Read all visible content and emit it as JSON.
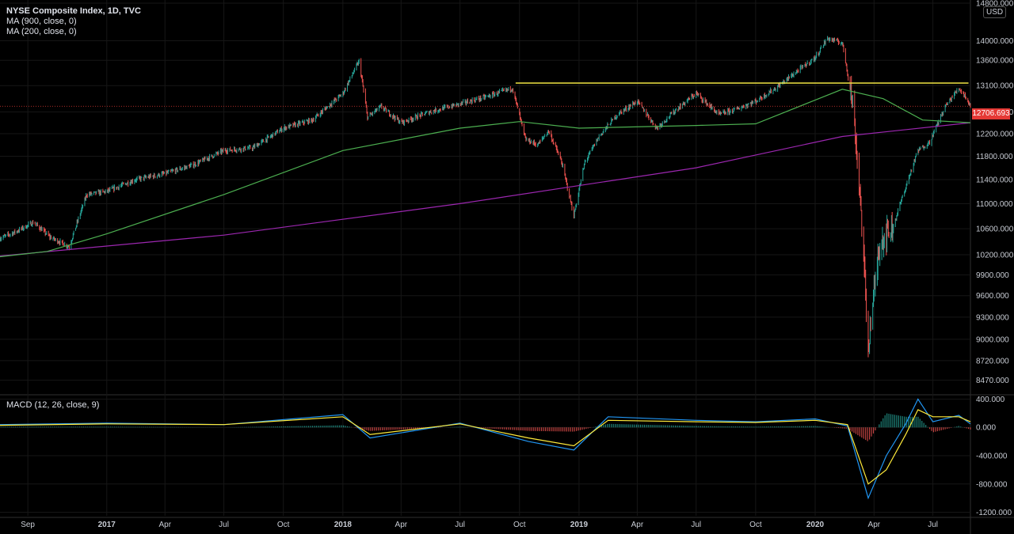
{
  "legend": {
    "title": "NYSE Composite Index, 1D, TVC",
    "ma900": "MA (900, close, 0)",
    "ma200": "MA (200, close, 0)",
    "macd": "MACD (12, 26, close, 9)"
  },
  "currency_badge": "USD",
  "last_price_label": "12706.693",
  "colors": {
    "background": "#000000",
    "candle_up": "#26a69a",
    "candle_down": "#ef5350",
    "ma900": "#9c27b0",
    "ma200": "#4caf50",
    "resistance": "#f0e442",
    "macd_line": "#2196f3",
    "signal_line": "#ffeb3b",
    "last_price": "#e53935"
  },
  "chart_data": [
    {
      "type": "line",
      "title": "NYSE Composite Index, 1D, TVC",
      "y_scale": "log",
      "ylim": [
        8300,
        14800
      ],
      "xlim": [
        "2016-07-20",
        "2020-08-28"
      ],
      "y_ticks": [
        "14800.000",
        "14000.000",
        "13600.000",
        "13100.000",
        "12600.000",
        "12200.000",
        "11800.000",
        "11400.000",
        "11000.000",
        "10600.000",
        "10200.000",
        "9900.000",
        "9600.000",
        "9300.000",
        "9000.000",
        "8720.000",
        "8470.000"
      ],
      "x_ticks": [
        {
          "label": "Sep",
          "date": "2016-09-01",
          "bold": false
        },
        {
          "label": "2017",
          "date": "2017-01-01",
          "bold": true
        },
        {
          "label": "Apr",
          "date": "2017-04-01",
          "bold": false
        },
        {
          "label": "Jul",
          "date": "2017-07-01",
          "bold": false
        },
        {
          "label": "Oct",
          "date": "2017-10-01",
          "bold": false
        },
        {
          "label": "2018",
          "date": "2018-01-01",
          "bold": true
        },
        {
          "label": "Apr",
          "date": "2018-04-01",
          "bold": false
        },
        {
          "label": "Jul",
          "date": "2018-07-01",
          "bold": false
        },
        {
          "label": "Oct",
          "date": "2018-10-01",
          "bold": false
        },
        {
          "label": "2019",
          "date": "2019-01-01",
          "bold": true
        },
        {
          "label": "Apr",
          "date": "2019-04-01",
          "bold": false
        },
        {
          "label": "Jul",
          "date": "2019-07-01",
          "bold": false
        },
        {
          "label": "Oct",
          "date": "2019-10-01",
          "bold": false
        },
        {
          "label": "2020",
          "date": "2020-01-01",
          "bold": true
        },
        {
          "label": "Apr",
          "date": "2020-04-01",
          "bold": false
        },
        {
          "label": "Jul",
          "date": "2020-07-01",
          "bold": false
        }
      ],
      "close_series": {
        "x": [
          "2016-07-20",
          "2016-08-15",
          "2016-09-10",
          "2016-10-05",
          "2016-11-04",
          "2016-12-01",
          "2017-01-01",
          "2017-02-15",
          "2017-04-01",
          "2017-05-15",
          "2017-07-01",
          "2017-08-15",
          "2017-10-01",
          "2017-11-15",
          "2018-01-01",
          "2018-01-26",
          "2018-02-08",
          "2018-03-01",
          "2018-04-01",
          "2018-05-15",
          "2018-07-01",
          "2018-08-15",
          "2018-09-20",
          "2018-10-10",
          "2018-10-29",
          "2018-11-15",
          "2018-12-05",
          "2018-12-24",
          "2019-01-10",
          "2019-02-01",
          "2019-03-01",
          "2019-04-01",
          "2019-05-01",
          "2019-06-01",
          "2019-07-01",
          "2019-08-05",
          "2019-09-01",
          "2019-10-01",
          "2019-11-01",
          "2019-12-01",
          "2020-01-01",
          "2020-01-20",
          "2020-02-12",
          "2020-02-28",
          "2020-03-10",
          "2020-03-23",
          "2020-04-10",
          "2020-05-01",
          "2020-06-08",
          "2020-06-26",
          "2020-07-20",
          "2020-08-10",
          "2020-08-20",
          "2020-08-28"
        ],
        "values": [
          10450,
          10560,
          10700,
          10470,
          10320,
          11150,
          11200,
          11400,
          11500,
          11650,
          11900,
          11950,
          12300,
          12450,
          12950,
          13580,
          12500,
          12700,
          12400,
          12600,
          12750,
          12900,
          13050,
          12100,
          12000,
          12250,
          11700,
          10800,
          11700,
          12150,
          12550,
          12800,
          12300,
          12650,
          12950,
          12550,
          12650,
          12800,
          13050,
          13350,
          13650,
          14050,
          13950,
          12750,
          11200,
          8900,
          10400,
          10650,
          11900,
          12050,
          12700,
          13050,
          12900,
          12706.693
        ]
      },
      "resistance_level": 13150,
      "ma900": {
        "x": [
          "2016-07-20",
          "2017-07-01",
          "2018-07-01",
          "2019-07-01",
          "2020-02-12",
          "2020-08-28"
        ],
        "values": [
          10180,
          10500,
          11000,
          11600,
          12150,
          12400
        ]
      },
      "ma200": {
        "x": [
          "2016-07-20",
          "2016-10-01",
          "2017-01-01",
          "2017-07-01",
          "2018-01-01",
          "2018-07-01",
          "2018-10-01",
          "2019-01-01",
          "2019-07-01",
          "2019-10-01",
          "2020-02-12",
          "2020-04-15",
          "2020-06-15",
          "2020-08-28"
        ],
        "values": [
          10170,
          10250,
          10520,
          11150,
          11900,
          12300,
          12420,
          12300,
          12350,
          12380,
          13030,
          12850,
          12450,
          12400
        ]
      }
    },
    {
      "type": "line",
      "title": "MACD (12, 26, close, 9)",
      "ylim": [
        -1250,
        450
      ],
      "y_ticks": [
        "400.000",
        "0.000",
        "-400.000",
        "-800.000",
        "-1200.000"
      ],
      "x": [
        "2016-07-20",
        "2017-01-01",
        "2017-07-01",
        "2018-01-01",
        "2018-02-12",
        "2018-07-01",
        "2018-10-15",
        "2018-12-24",
        "2019-02-15",
        "2019-07-01",
        "2019-10-01",
        "2020-01-01",
        "2020-02-20",
        "2020-03-23",
        "2020-04-20",
        "2020-05-20",
        "2020-06-08",
        "2020-07-01",
        "2020-08-10",
        "2020-08-28"
      ],
      "series": [
        {
          "name": "MACD",
          "values": [
            40,
            60,
            40,
            180,
            -150,
            60,
            -200,
            -320,
            150,
            100,
            80,
            120,
            20,
            -1000,
            -400,
            50,
            400,
            80,
            170,
            50
          ]
        },
        {
          "name": "Signal",
          "values": [
            30,
            50,
            40,
            150,
            -100,
            50,
            -150,
            -260,
            100,
            80,
            70,
            100,
            40,
            -800,
            -600,
            -100,
            250,
            150,
            150,
            80
          ]
        }
      ]
    }
  ]
}
